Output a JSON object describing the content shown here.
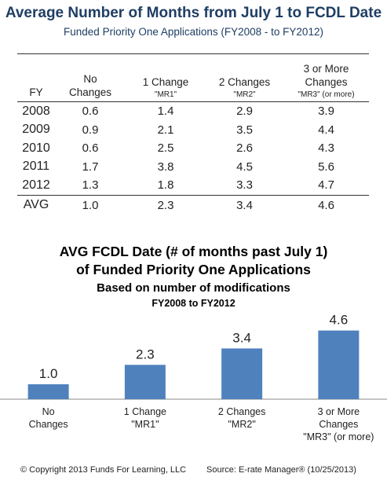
{
  "table": {
    "title": "Average Number of Months from July 1 to FCDL Date",
    "subtitle": "Funded Priority One Applications (FY2008 - to FY2012)",
    "headers": [
      {
        "main": "FY",
        "sub": ""
      },
      {
        "main": "No Changes",
        "sub": ""
      },
      {
        "main": "1 Change",
        "sub": "\"MR1\""
      },
      {
        "main": "2 Changes",
        "sub": "\"MR2\""
      },
      {
        "main": "3 or More Changes",
        "sub": "\"MR3\" (or more)"
      }
    ],
    "rows": [
      [
        "2008",
        "0.6",
        "1.4",
        "2.9",
        "3.9"
      ],
      [
        "2009",
        "0.9",
        "2.1",
        "3.5",
        "4.4"
      ],
      [
        "2010",
        "0.6",
        "2.5",
        "2.6",
        "4.3"
      ],
      [
        "2011",
        "1.7",
        "3.8",
        "4.5",
        "5.6"
      ],
      [
        "2012",
        "1.3",
        "1.8",
        "3.3",
        "4.7"
      ]
    ],
    "avg_row": [
      "AVG",
      "1.0",
      "2.3",
      "3.4",
      "4.6"
    ]
  },
  "chart_data": {
    "type": "bar",
    "title": "AVG FCDL Date (# of months past July 1)",
    "title_line2": "of Funded Priority One Applications",
    "subtitle": "Based on number of modifications",
    "subtitle2": "FY2008 to FY2012",
    "categories": [
      [
        "No",
        "Changes"
      ],
      [
        "1 Change",
        "\"MR1\""
      ],
      [
        "2 Changes",
        "\"MR2\""
      ],
      [
        "3 or More",
        "Changes",
        "\"MR3\" (or more)"
      ]
    ],
    "values": [
      1.0,
      2.3,
      3.4,
      4.6
    ],
    "value_labels": [
      "1.0",
      "2.3",
      "3.4",
      "4.6"
    ],
    "ylim": [
      0,
      5
    ],
    "grid": false,
    "bar_color": "#4f81bd"
  },
  "footer": {
    "copyright": "© Copyright 2013 Funds For Learning, LLC",
    "source": "Source: E-rate Manager® (10/25/2013)"
  }
}
